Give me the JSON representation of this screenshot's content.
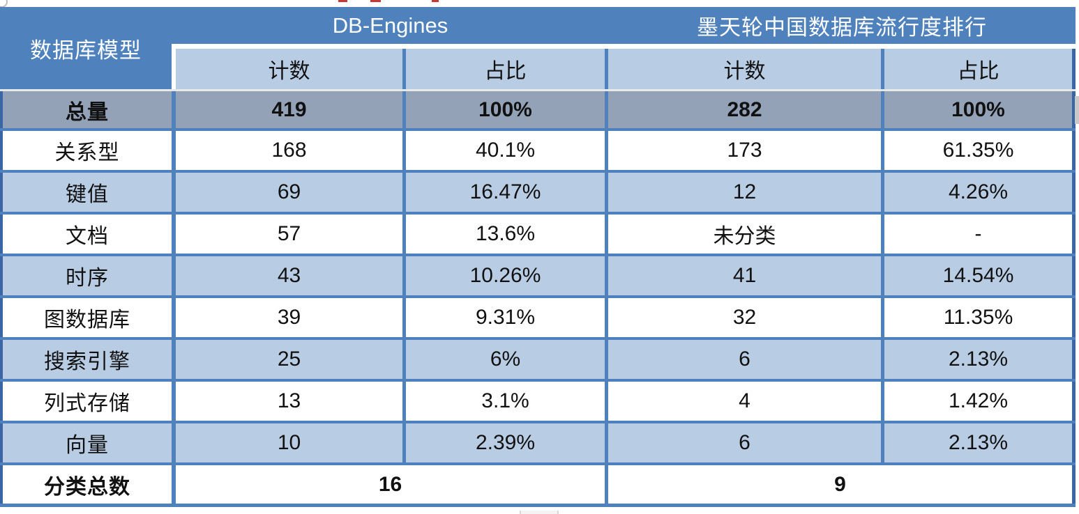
{
  "colors": {
    "header_blue": "#4f81bd",
    "subheader_blue": "#b8cce4",
    "alt_row_blue": "#b8cce4",
    "total_row_gray": "#93a2b7",
    "border_blue": "#4f81bd",
    "outer_border_blue": "#3a66a6",
    "artifact_red": "#c83737"
  },
  "table": {
    "corner_header": "数据库模型",
    "group_headers": [
      "DB-Engines",
      "墨天轮中国数据库流行度排行"
    ],
    "sub_headers": [
      "计数",
      "占比",
      "计数",
      "占比"
    ],
    "total_row": {
      "label": "总量",
      "cells": [
        "419",
        "100%",
        "282",
        "100%"
      ]
    },
    "rows": [
      {
        "label": "关系型",
        "cells": [
          "168",
          "40.1%",
          "173",
          "61.35%"
        ]
      },
      {
        "label": "键值",
        "cells": [
          "69",
          "16.47%",
          "12",
          "4.26%"
        ]
      },
      {
        "label": "文档",
        "cells": [
          "57",
          "13.6%",
          "未分类",
          "-"
        ]
      },
      {
        "label": "时序",
        "cells": [
          "43",
          "10.26%",
          "41",
          "14.54%"
        ]
      },
      {
        "label": "图数据库",
        "cells": [
          "39",
          "9.31%",
          "32",
          "11.35%"
        ]
      },
      {
        "label": "搜索引擎",
        "cells": [
          "25",
          "6%",
          "6",
          "2.13%"
        ]
      },
      {
        "label": "列式存储",
        "cells": [
          "13",
          "3.1%",
          "4",
          "1.42%"
        ]
      },
      {
        "label": "向量",
        "cells": [
          "10",
          "2.39%",
          "6",
          "2.13%"
        ]
      }
    ],
    "footer_row": {
      "label": "分类总数",
      "left_total": "16",
      "right_total": "9"
    }
  }
}
